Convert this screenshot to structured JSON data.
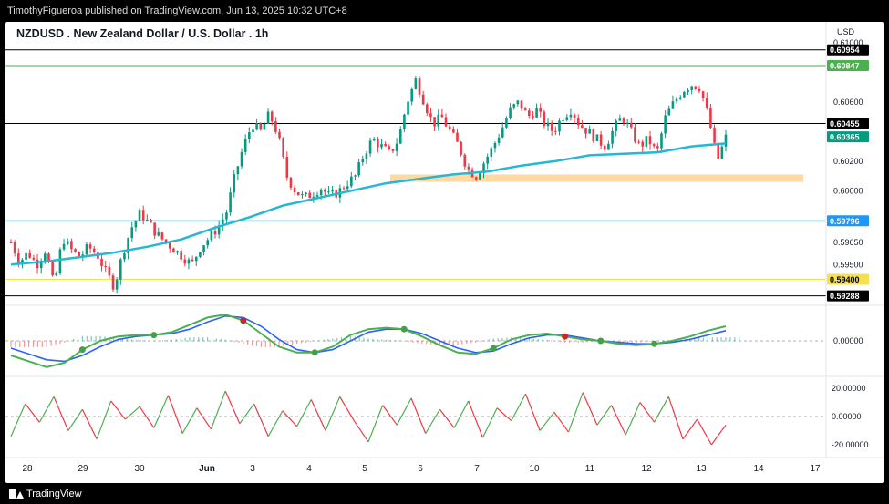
{
  "header": {
    "published": "TimothyFigueroa published on TradingView.com, Jun 13, 2025 10:32 UTC+8"
  },
  "footer": {
    "brand": "TradingView"
  },
  "chart_data": {
    "type": "candlestick",
    "title": "NZDUSD . New Zealand Dollar / U.S. Dollar . 1h",
    "currency": "USD",
    "x_ticks": [
      "28",
      "29",
      "30",
      "Jun",
      "3",
      "4",
      "5",
      "6",
      "7",
      "10",
      "11",
      "12",
      "13",
      "14",
      "17"
    ],
    "y_ticks": [
      "0.61000",
      "0.60600",
      "0.60200",
      "0.60000",
      "0.59650",
      "0.59500"
    ],
    "ylim": [
      0.5923,
      0.6102
    ],
    "price_labels": [
      {
        "value": "0.60954",
        "style": "black"
      },
      {
        "value": "0.60847",
        "style": "green"
      },
      {
        "value": "0.60455",
        "style": "black"
      },
      {
        "value": "0.60365",
        "style": "teal"
      },
      {
        "value": "0.59796",
        "style": "blue"
      },
      {
        "value": "0.59400",
        "style": "yellow"
      },
      {
        "value": "0.59288",
        "style": "black"
      }
    ],
    "horizontal_lines": [
      {
        "price": 0.60954,
        "color": "#000000"
      },
      {
        "price": 0.60847,
        "color": "#4caf50"
      },
      {
        "price": 0.60455,
        "color": "#000000"
      },
      {
        "price": 0.59796,
        "color": "#29a3d6"
      },
      {
        "price": 0.594,
        "color": "#f5e050"
      },
      {
        "price": 0.59288,
        "color": "#000000"
      }
    ],
    "support_zone": {
      "from": 0.6006,
      "to": 0.6011,
      "color": "#ffd59a"
    },
    "price_path": [
      0.5965,
      0.5952,
      0.5958,
      0.595,
      0.596,
      0.5935,
      0.5968,
      0.596,
      0.5955,
      0.5962,
      0.5957,
      0.5945,
      0.5935,
      0.5958,
      0.5975,
      0.5985,
      0.5978,
      0.597,
      0.5965,
      0.596,
      0.5955,
      0.595,
      0.5962,
      0.5968,
      0.5975,
      0.5985,
      0.601,
      0.603,
      0.6045,
      0.604,
      0.6052,
      0.6038,
      0.601,
      0.6,
      0.5995,
      0.5998,
      0.6002,
      0.5996,
      0.5999,
      0.6005,
      0.601,
      0.6025,
      0.6035,
      0.603,
      0.6025,
      0.6035,
      0.606,
      0.6075,
      0.606,
      0.6045,
      0.605,
      0.604,
      0.603,
      0.6015,
      0.601,
      0.602,
      0.603,
      0.6042,
      0.6055,
      0.606,
      0.605,
      0.6055,
      0.6045,
      0.604,
      0.605,
      0.6055,
      0.6045,
      0.604,
      0.6035,
      0.603,
      0.6042,
      0.605,
      0.604,
      0.603,
      0.6035,
      0.6025,
      0.605,
      0.606,
      0.6068,
      0.6072,
      0.607,
      0.605,
      0.602,
      0.6036
    ],
    "ma_line": {
      "color": "#26b7d4",
      "values": [
        0.595,
        0.5952,
        0.5955,
        0.5958,
        0.5962,
        0.5967,
        0.5975,
        0.5982,
        0.599,
        0.5995,
        0.6,
        0.6005,
        0.6008,
        0.6011,
        0.6013,
        0.6017,
        0.602,
        0.6024,
        0.6025,
        0.6026,
        0.603,
        0.6032
      ]
    },
    "macd": {
      "zero_label": "0.00000",
      "macd_line": [
        -10,
        -14,
        -18,
        -15,
        -6,
        0,
        3,
        4,
        4,
        6,
        11,
        16,
        18,
        14,
        5,
        -4,
        -8,
        -8,
        -4,
        4,
        8,
        9,
        8,
        3,
        -3,
        -8,
        -9,
        -5,
        1,
        4,
        5,
        3,
        1,
        0,
        -2,
        -3,
        -2,
        0,
        3,
        7,
        10
      ],
      "signal_line": [
        -5,
        -9,
        -13,
        -14,
        -10,
        -4,
        1,
        3,
        4,
        5,
        8,
        13,
        17,
        16,
        10,
        1,
        -6,
        -8,
        -6,
        0,
        6,
        8,
        8,
        5,
        0,
        -5,
        -8,
        -7,
        -2,
        2,
        4,
        4,
        2,
        0,
        -1,
        -2,
        -2,
        -1,
        1,
        4,
        7
      ]
    },
    "rsi": {
      "levels": [
        "20.00000",
        "0.00000",
        "-20.00000"
      ],
      "series": [
        -14,
        9,
        -4,
        14,
        -10,
        5,
        -16,
        11,
        -2,
        7,
        -8,
        15,
        -12,
        6,
        -9,
        18,
        -5,
        9,
        -14,
        4,
        -7,
        12,
        -10,
        14,
        -3,
        -18,
        8,
        -6,
        13,
        -12,
        5,
        -8,
        11,
        -15,
        6,
        -3,
        16,
        -10,
        3,
        -11,
        17,
        -6,
        8,
        -13,
        10,
        -4,
        14,
        -16,
        -2,
        -20,
        -6
      ]
    }
  }
}
